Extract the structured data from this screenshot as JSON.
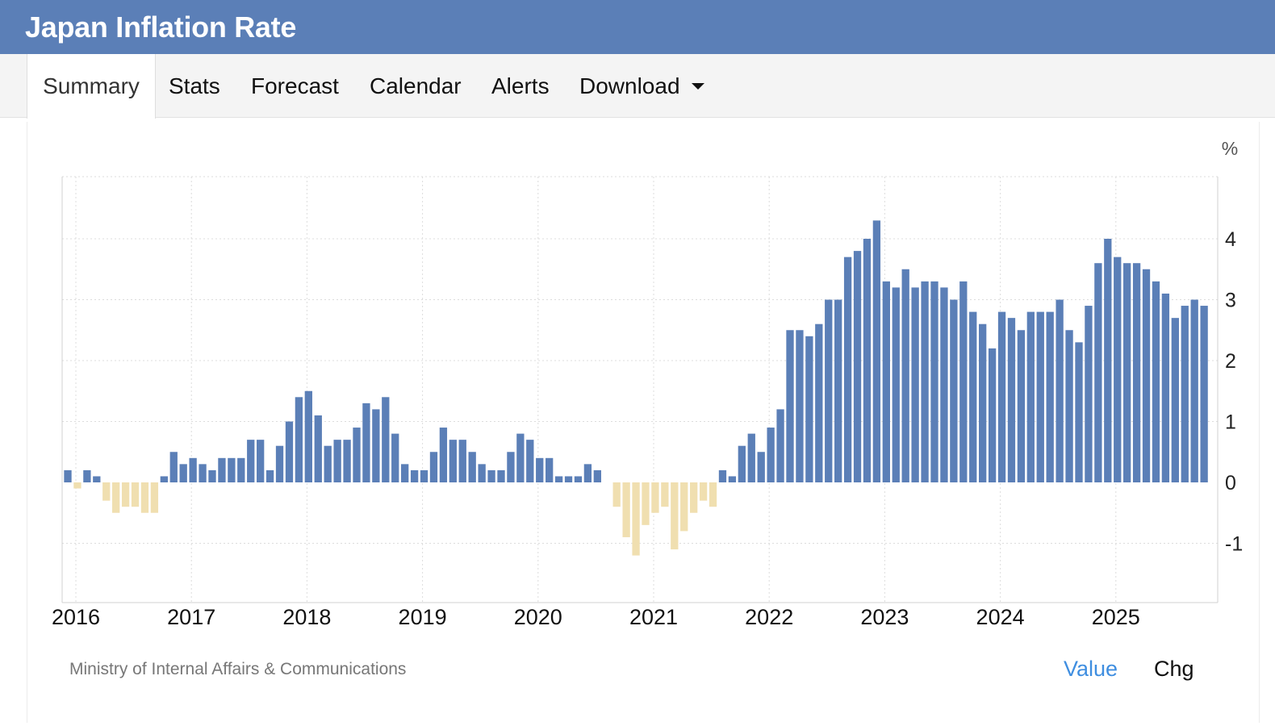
{
  "header": {
    "title": "Japan Inflation Rate"
  },
  "tabs": [
    {
      "label": "Summary",
      "active": true
    },
    {
      "label": "Stats",
      "active": false
    },
    {
      "label": "Forecast",
      "active": false
    },
    {
      "label": "Calendar",
      "active": false
    },
    {
      "label": "Alerts",
      "active": false
    },
    {
      "label": "Download",
      "active": false,
      "dropdown": true
    }
  ],
  "chart_data": {
    "type": "bar",
    "unit_label": "%",
    "x_tick_labels": [
      "2016",
      "2017",
      "2018",
      "2019",
      "2020",
      "2021",
      "2022",
      "2023",
      "2024",
      "2025"
    ],
    "y_tick_labels": [
      "-1",
      "0",
      "1",
      "2",
      "3",
      "4"
    ],
    "ylim": [
      -2,
      5
    ],
    "grid": true,
    "colors": {
      "positive": "#5b7fb7",
      "negative": "#f0dfb0"
    },
    "monthly_start": "2016-01",
    "values": [
      0.2,
      -0.1,
      0.2,
      0.1,
      -0.3,
      -0.5,
      -0.4,
      -0.4,
      -0.5,
      -0.5,
      0.1,
      0.5,
      0.3,
      0.4,
      0.3,
      0.2,
      0.4,
      0.4,
      0.4,
      0.7,
      0.7,
      0.2,
      0.6,
      1.0,
      1.4,
      1.5,
      1.1,
      0.6,
      0.7,
      0.7,
      0.9,
      1.3,
      1.2,
      1.4,
      0.8,
      0.3,
      0.2,
      0.2,
      0.5,
      0.9,
      0.7,
      0.7,
      0.5,
      0.3,
      0.2,
      0.2,
      0.5,
      0.8,
      0.7,
      0.4,
      0.4,
      0.1,
      0.1,
      0.1,
      0.3,
      0.2,
      0.0,
      -0.4,
      -0.9,
      -1.2,
      -0.7,
      -0.5,
      -0.4,
      -1.1,
      -0.8,
      -0.5,
      -0.3,
      -0.4,
      0.2,
      0.1,
      0.6,
      0.8,
      0.5,
      0.9,
      1.2,
      2.5,
      2.5,
      2.4,
      2.6,
      3.0,
      3.0,
      3.7,
      3.8,
      4.0,
      4.3,
      3.3,
      3.2,
      3.5,
      3.2,
      3.3,
      3.3,
      3.2,
      3.0,
      3.3,
      2.8,
      2.6,
      2.2,
      2.8,
      2.7,
      2.5,
      2.8,
      2.8,
      2.8,
      3.0,
      2.5,
      2.3,
      2.9,
      3.6,
      4.0,
      3.7,
      3.6,
      3.6,
      3.5,
      3.3,
      3.1,
      2.7,
      2.9,
      3.0,
      2.9
    ]
  },
  "footer": {
    "source": "Ministry of Internal Affairs & Communications",
    "toggle_value": "Value",
    "toggle_chg": "Chg"
  }
}
